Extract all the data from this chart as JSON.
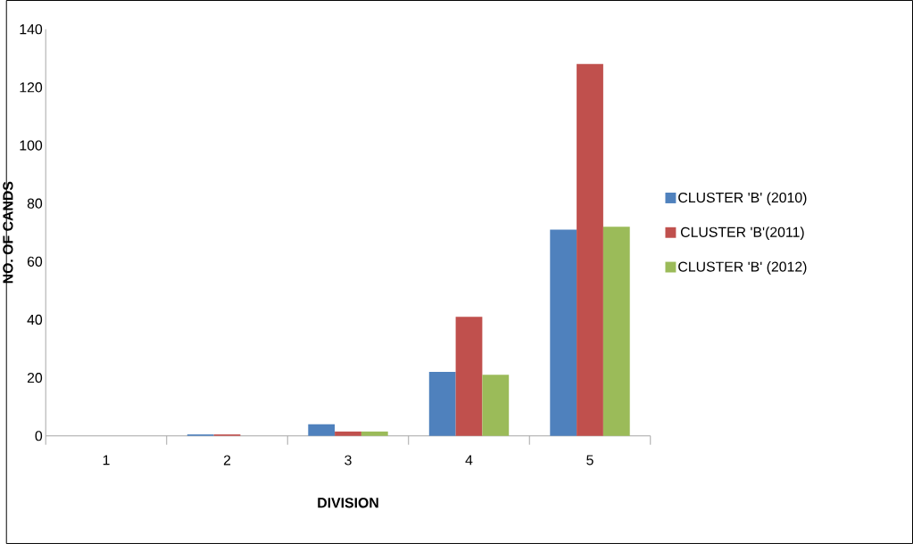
{
  "chart_data": {
    "type": "bar",
    "xlabel": "DIVISION",
    "ylabel": "NO. OF CANDS",
    "categories": [
      "1",
      "2",
      "3",
      "4",
      "5"
    ],
    "series": [
      {
        "name": "CLUSTER 'B' (2010)",
        "color": "#4f81bd",
        "values": [
          0,
          0.5,
          4,
          22,
          71
        ]
      },
      {
        "name": "CLUSTER 'B'(2011)",
        "color": "#c0504d",
        "values": [
          0,
          0.5,
          1.5,
          41,
          128
        ]
      },
      {
        "name": "CLUSTER 'B' (2012)",
        "color": "#9bbb59",
        "values": [
          0,
          0,
          1.5,
          21,
          72
        ]
      }
    ],
    "ylim": [
      0,
      140
    ],
    "yticks": [
      0,
      20,
      40,
      60,
      80,
      100,
      120,
      140
    ],
    "legend": "right",
    "grid": false
  }
}
